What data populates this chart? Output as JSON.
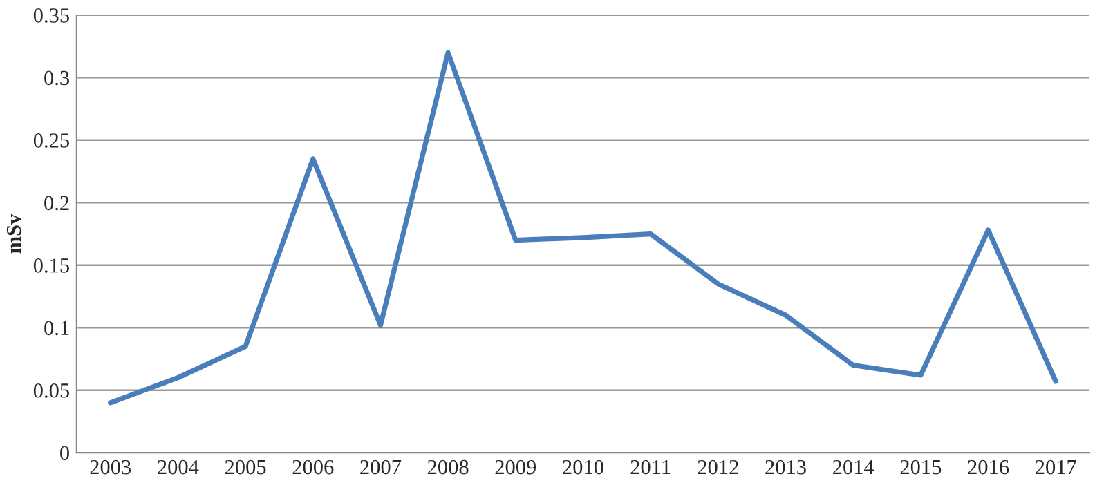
{
  "chart_data": {
    "type": "line",
    "ylabel": "mSv",
    "categories": [
      "2003",
      "2004",
      "2005",
      "2006",
      "2007",
      "2008",
      "2009",
      "2010",
      "2011",
      "2012",
      "2013",
      "2014",
      "2015",
      "2016",
      "2017"
    ],
    "series": [
      {
        "color": "#4a7ebb",
        "values": [
          0.04,
          0.06,
          0.085,
          0.235,
          0.102,
          0.32,
          0.17,
          0.172,
          0.175,
          0.135,
          0.11,
          0.07,
          0.062,
          0.178,
          0.057
        ]
      }
    ],
    "ylim": [
      0,
      0.35
    ],
    "yticks": [
      {
        "value": 0,
        "label": "0"
      },
      0.05,
      {
        "value": 0.1,
        "label": "0.1"
      },
      0.15,
      {
        "value": 0.2,
        "label": "0.2"
      },
      0.25,
      {
        "value": 0.3,
        "label": "0.3"
      },
      0.35
    ],
    "grid": "y",
    "legend": false,
    "marker": "none",
    "line_style": "solid"
  }
}
